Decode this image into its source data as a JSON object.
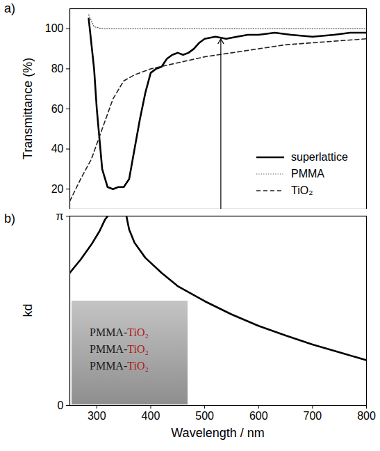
{
  "chart_data": [
    {
      "type": "line",
      "panel_label": "a)",
      "ylabel": "Transmittance (%)",
      "xlim": [
        250,
        800
      ],
      "ylim": [
        10,
        110
      ],
      "yticks": [
        20,
        40,
        60,
        80,
        100
      ],
      "tick_labels": "y",
      "legend": "lower right",
      "arrow": {
        "x": 530,
        "from": 10,
        "to": 95
      },
      "series": [
        {
          "name": "superlattice",
          "color": "#000000",
          "line_style": "solid",
          "x": [
            285,
            295,
            300,
            310,
            320,
            330,
            340,
            350,
            360,
            370,
            380,
            390,
            400,
            410,
            420,
            430,
            440,
            450,
            460,
            470,
            480,
            490,
            500,
            520,
            540,
            560,
            580,
            600,
            630,
            660,
            700,
            740,
            770,
            800
          ],
          "values": [
            105,
            80,
            60,
            30,
            21,
            20,
            21,
            21,
            25,
            40,
            55,
            68,
            78,
            80,
            81,
            85,
            87,
            88,
            87,
            88,
            90,
            93,
            95,
            96,
            95,
            96,
            97,
            97,
            98,
            97,
            96,
            97,
            98,
            98
          ]
        },
        {
          "name": "PMMA",
          "color": "#555555",
          "line_style": "dotted",
          "x": [
            285,
            295,
            310,
            400,
            500,
            600,
            700,
            800
          ],
          "values": [
            107,
            101,
            100,
            100,
            100,
            100,
            100,
            100
          ]
        },
        {
          "name": "TiO₂",
          "color": "#222222",
          "line_style": "dashed",
          "x": [
            250,
            270,
            290,
            310,
            330,
            350,
            370,
            400,
            450,
            500,
            550,
            600,
            650,
            700,
            750,
            800
          ],
          "values": [
            14,
            25,
            35,
            50,
            65,
            74,
            77,
            80,
            83,
            86,
            88,
            90,
            92,
            93,
            94,
            95
          ]
        }
      ]
    },
    {
      "type": "line",
      "panel_label": "b)",
      "xlabel": "Wavelength / nm",
      "ylabel": "kd",
      "xlim": [
        250,
        800
      ],
      "xticks": [
        300,
        400,
        500,
        600,
        700,
        800
      ],
      "ylim": [
        0,
        3.14159265
      ],
      "yticks": [
        0,
        {
          "value": 3.14159265,
          "label": "π"
        }
      ],
      "inset_text": [
        "PMMA-TiO₂",
        "PMMA-TiO₂",
        "PMMA-TiO₂"
      ],
      "series": [
        {
          "color": "#000000",
          "line_style": "solid",
          "x": [
            250,
            270,
            290,
            305,
            315,
            320,
            337,
            355,
            360,
            370,
            390,
            420,
            450,
            500,
            550,
            600,
            650,
            700,
            750,
            800
          ],
          "values": [
            2.2,
            2.42,
            2.67,
            2.89,
            3.08,
            3.14,
            null,
            3.14,
            2.92,
            2.7,
            2.45,
            2.2,
            1.98,
            1.73,
            1.51,
            1.32,
            1.16,
            1.01,
            0.88,
            0.75
          ]
        }
      ]
    }
  ]
}
